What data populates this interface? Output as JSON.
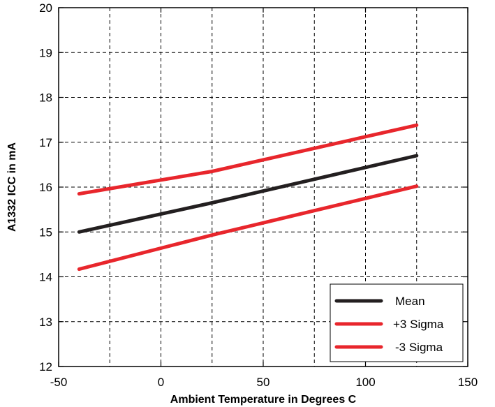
{
  "chart_data": {
    "type": "line",
    "title": "",
    "xlabel": "Ambient Temperature in Degrees C",
    "ylabel": "A1332 ICC in mA",
    "xlim": [
      -50,
      150
    ],
    "ylim": [
      12,
      20
    ],
    "xticks": [
      -50,
      0,
      50,
      100,
      150
    ],
    "xtick_labels": [
      "-50",
      "0",
      "50",
      "100",
      "150"
    ],
    "xgrid": [
      -25,
      0,
      25,
      50,
      75,
      100,
      125
    ],
    "yticks": [
      12,
      13,
      14,
      15,
      16,
      17,
      18,
      19,
      20
    ],
    "ytick_labels": [
      "12",
      "13",
      "14",
      "15",
      "16",
      "17",
      "18",
      "19",
      "20"
    ],
    "grid": true,
    "legend_position": "bottom-right",
    "series": [
      {
        "name": "Mean",
        "color": "#231f20",
        "x": [
          -40,
          25,
          125
        ],
        "y": [
          15.0,
          15.65,
          16.7
        ]
      },
      {
        "name": "+3 Sigma",
        "color": "#e8262c",
        "x": [
          -40,
          25,
          125
        ],
        "y": [
          15.85,
          16.35,
          17.38
        ]
      },
      {
        "name": "-3 Sigma",
        "color": "#e8262c",
        "x": [
          -40,
          25,
          125
        ],
        "y": [
          14.17,
          14.93,
          16.02
        ]
      }
    ]
  }
}
